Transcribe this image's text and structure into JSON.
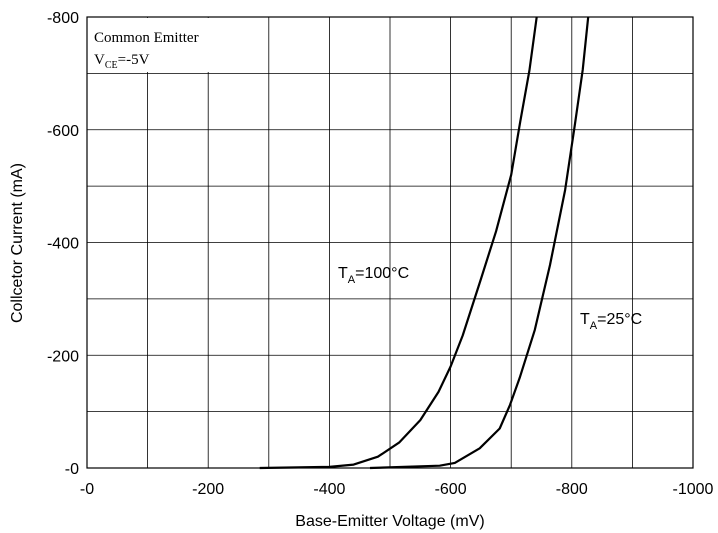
{
  "chart_data": {
    "type": "line",
    "xlabel": "Base-Emitter Voltage (mV)",
    "ylabel": "Collcetor Current (mA)",
    "condition": {
      "line1": "Common Emitter",
      "line2": {
        "prefix": "V",
        "sub": "CE",
        "suffix": "=-5V"
      }
    },
    "xlim": [
      0,
      -1000
    ],
    "ylim": [
      0,
      -800
    ],
    "xticks": [
      {
        "value": 0,
        "label": "-0"
      },
      -200,
      -400,
      -600,
      -800,
      -1000
    ],
    "yticks": [
      {
        "value": 0,
        "label": "-0"
      },
      -200,
      -400,
      -600,
      -800
    ],
    "xgrid_minor": [
      -100,
      -300,
      -500,
      -700,
      -900
    ],
    "ygrid_minor": [
      -100,
      -300,
      -500,
      -700
    ],
    "grid": true,
    "series": [
      {
        "label": {
          "prefix": "T",
          "sub": "A",
          "suffix": "=100°C"
        },
        "color": "#000000",
        "x": [
          -285,
          -400,
          -440,
          -480,
          -515,
          -550,
          -580,
          -600,
          -620,
          -650,
          -675,
          -700,
          -715,
          -730,
          -742
        ],
        "values": [
          0,
          -2,
          -6,
          -20,
          -45,
          -85,
          -135,
          -180,
          -235,
          -335,
          -420,
          -520,
          -615,
          -705,
          -800
        ]
      },
      {
        "label": {
          "prefix": "T",
          "sub": "A",
          "suffix": "=25°C"
        },
        "color": "#000000",
        "x": [
          -467,
          -582,
          -607,
          -648,
          -681,
          -698,
          -714,
          -739,
          -764,
          -789,
          -805,
          -818,
          -827
        ],
        "values": [
          0,
          -4,
          -9,
          -35,
          -70,
          -112,
          -160,
          -245,
          -360,
          -493,
          -608,
          -706,
          -800
        ]
      }
    ]
  }
}
